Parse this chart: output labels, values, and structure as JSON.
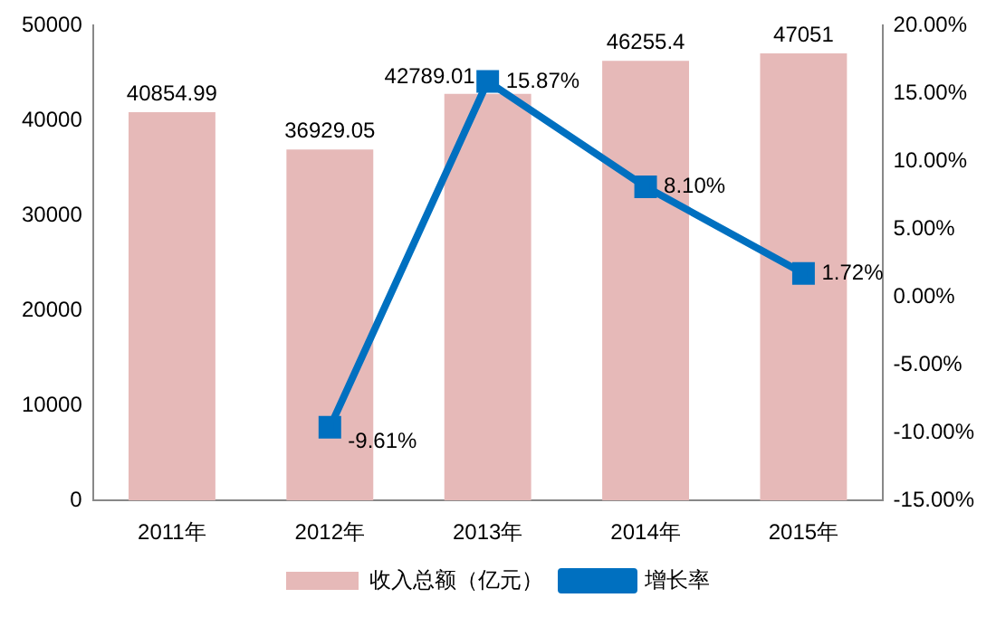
{
  "chart_data": {
    "type": "bar",
    "categories": [
      "2011年",
      "2012年",
      "2013年",
      "2014年",
      "2015年"
    ],
    "series": [
      {
        "name": "收入总额（亿元）",
        "color": "#e6b9b8",
        "values": [
          40854.99,
          36929.05,
          42789.01,
          46255.4,
          47051
        ],
        "value_labels": [
          "40854.99",
          "36929.05",
          "42789.01",
          "46255.4",
          "47051"
        ]
      },
      {
        "type": "line",
        "name": "增长率",
        "color": "#0070c0",
        "axis": "y2",
        "marker": "square",
        "values": [
          null,
          -9.61,
          15.87,
          8.1,
          1.72
        ],
        "value_labels": [
          null,
          "-9.61%",
          "15.87%",
          "8.10%",
          "1.72%"
        ]
      }
    ],
    "ylim": [
      0,
      50000
    ],
    "yticks": [
      0,
      10000,
      20000,
      30000,
      40000,
      50000
    ],
    "y2lim": [
      -15,
      20
    ],
    "y2ticks": [
      {
        "value": -15,
        "label": "-15.00%"
      },
      {
        "value": -10,
        "label": "-10.00%"
      },
      {
        "value": -5,
        "label": "-5.00%"
      },
      {
        "value": 0,
        "label": "0.00%"
      },
      {
        "value": 5,
        "label": "5.00%"
      },
      {
        "value": 10,
        "label": "10.00%"
      },
      {
        "value": 15,
        "label": "15.00%"
      },
      {
        "value": 20,
        "label": "20.00%"
      }
    ],
    "legend": "bottom"
  }
}
